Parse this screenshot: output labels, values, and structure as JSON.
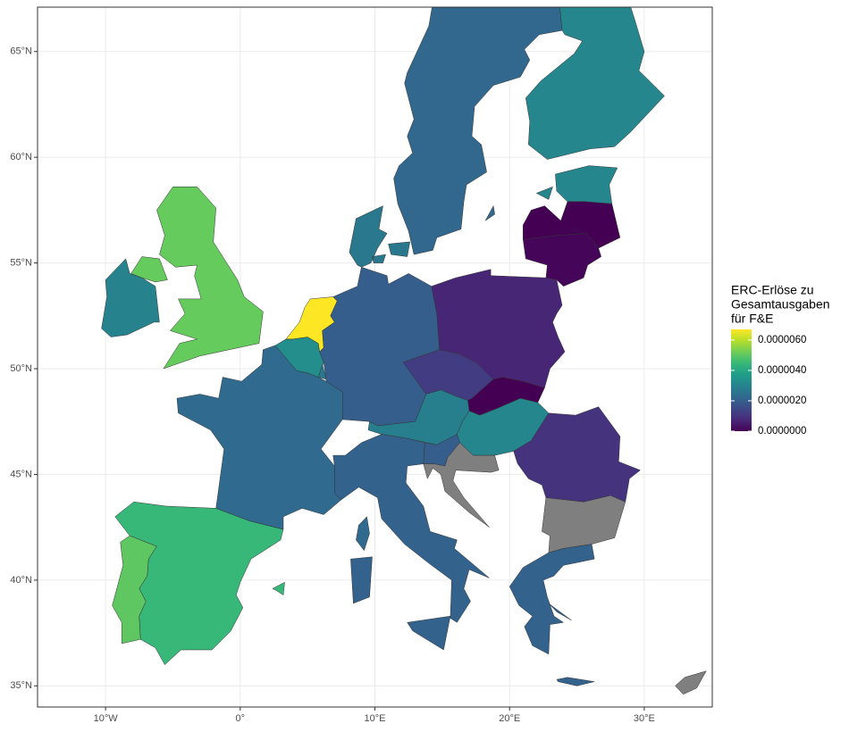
{
  "chart_data": {
    "type": "choropleth",
    "legend_title": [
      "ERC-Erlöse zu",
      "Gesamtausgaben",
      "für F&E"
    ],
    "values": [
      5e-06,
      4.5e-06,
      2.3e-06,
      3.3e-06,
      6.7e-06,
      2.7e-06,
      2e-06,
      2.7e-06,
      2.2e-06,
      3.1e-06,
      3.1e-06,
      0.0,
      1e-07,
      7e-07,
      1.2e-06,
      0.0,
      2.9e-06,
      3.1e-06,
      2e-06,
      null,
      1e-06,
      null,
      2.1e-06,
      2.1e-06,
      3e-06,
      5.1e-06,
      null
    ],
    "colormap": "viridis",
    "na_color": "#7f7f7f",
    "colorlim": [
      0,
      6.7e-06
    ],
    "legend_ticks": [
      {
        "value": 0,
        "label": "0.0000000"
      },
      {
        "value": 2e-06,
        "label": "0.0000020"
      },
      {
        "value": 4e-06,
        "label": "0.0000040"
      },
      {
        "value": 6e-06,
        "label": "0.0000060"
      }
    ],
    "legend_position": "right",
    "xlim": [
      -15.05,
      35.05
    ],
    "ylim": [
      34.0,
      67.1
    ],
    "xticks": [
      {
        "value": -10,
        "label": "10°W"
      },
      {
        "value": 0,
        "label": "0°"
      },
      {
        "value": 10,
        "label": "10°E"
      },
      {
        "value": 20,
        "label": "20°E"
      },
      {
        "value": 30,
        "label": "30°E"
      }
    ],
    "yticks": [
      {
        "value": 35,
        "label": "35°N"
      },
      {
        "value": 40,
        "label": "40°N"
      },
      {
        "value": 45,
        "label": "45°N"
      },
      {
        "value": 50,
        "label": "50°N"
      },
      {
        "value": 55,
        "label": "55°N"
      },
      {
        "value": 60,
        "label": "60°N"
      },
      {
        "value": 65,
        "label": "65°N"
      }
    ],
    "grid": true
  }
}
